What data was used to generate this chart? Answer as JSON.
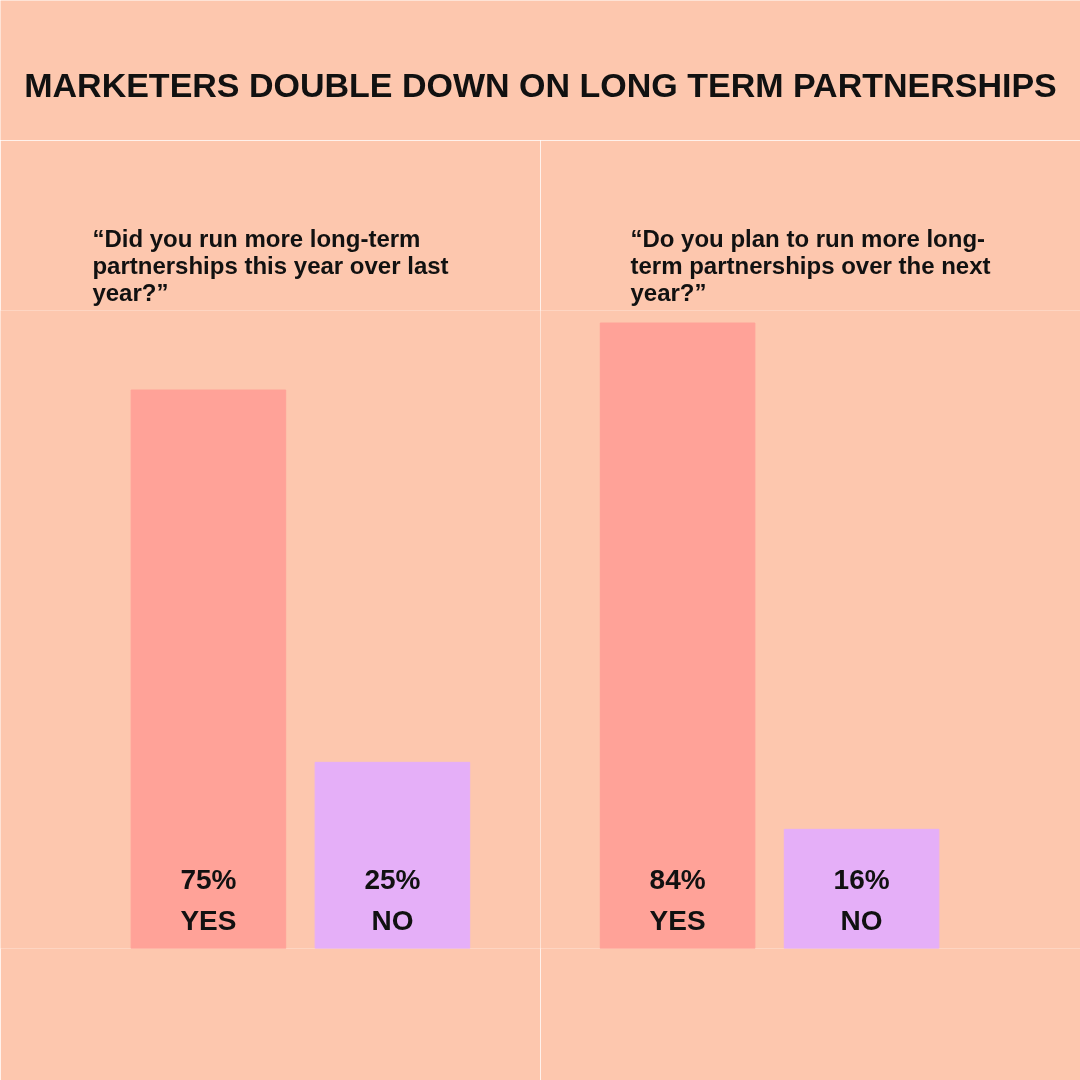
{
  "chart_data": [
    {
      "type": "other",
      "title": "MARKETERS DOUBLE DOWN ON LONG TERM PARTNERSHIPS"
    },
    {
      "type": "bar",
      "title": "“Did you run more long-term partnerships this year over last year?”",
      "categories": [
        "YES",
        "NO"
      ],
      "values": [
        75,
        25
      ],
      "colors": [
        "#ffa298",
        "#e5aff8"
      ],
      "value_labels": [
        "75%",
        "25%"
      ],
      "tick_labels": false
    },
    {
      "type": "bar",
      "title": "“Do you plan to run more long-term partnerships over the next year?”",
      "categories": [
        "YES",
        "NO"
      ],
      "values": [
        84,
        16
      ],
      "colors": [
        "#ffa298",
        "#e5aff8"
      ],
      "value_labels": [
        "84%",
        "16%"
      ],
      "tick_labels": false
    }
  ]
}
